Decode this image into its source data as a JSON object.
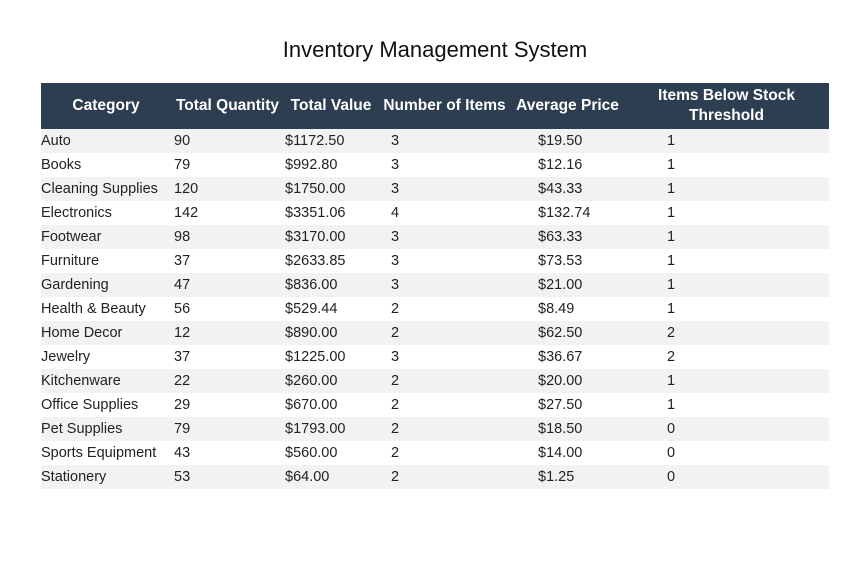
{
  "title": "Inventory Management System",
  "colors": {
    "header_bg": "#2c3e50",
    "header_text": "#ffffff",
    "row_stripe": "#f2f2f2"
  },
  "table": {
    "headers": [
      "Category",
      "Total Quantity",
      "Total Value",
      "Number of Items",
      "Average Price",
      "Items Below Stock Threshold"
    ],
    "rows": [
      [
        "Auto",
        "90",
        "$1172.50",
        "3",
        "$19.50",
        "1"
      ],
      [
        "Books",
        "79",
        "$992.80",
        "3",
        "$12.16",
        "1"
      ],
      [
        "Cleaning Supplies",
        "120",
        "$1750.00",
        "3",
        "$43.33",
        "1"
      ],
      [
        "Electronics",
        "142",
        "$3351.06",
        "4",
        "$132.74",
        "1"
      ],
      [
        "Footwear",
        "98",
        "$3170.00",
        "3",
        "$63.33",
        "1"
      ],
      [
        "Furniture",
        "37",
        "$2633.85",
        "3",
        "$73.53",
        "1"
      ],
      [
        "Gardening",
        "47",
        "$836.00",
        "3",
        "$21.00",
        "1"
      ],
      [
        "Health & Beauty",
        "56",
        "$529.44",
        "2",
        "$8.49",
        "1"
      ],
      [
        "Home Decor",
        "12",
        "$890.00",
        "2",
        "$62.50",
        "2"
      ],
      [
        "Jewelry",
        "37",
        "$1225.00",
        "3",
        "$36.67",
        "2"
      ],
      [
        "Kitchenware",
        "22",
        "$260.00",
        "2",
        "$20.00",
        "1"
      ],
      [
        "Office Supplies",
        "29",
        "$670.00",
        "2",
        "$27.50",
        "1"
      ],
      [
        "Pet Supplies",
        "79",
        "$1793.00",
        "2",
        "$18.50",
        "0"
      ],
      [
        "Sports Equipment",
        "43",
        "$560.00",
        "2",
        "$14.00",
        "0"
      ],
      [
        "Stationery",
        "53",
        "$64.00",
        "2",
        "$1.25",
        "0"
      ]
    ]
  }
}
